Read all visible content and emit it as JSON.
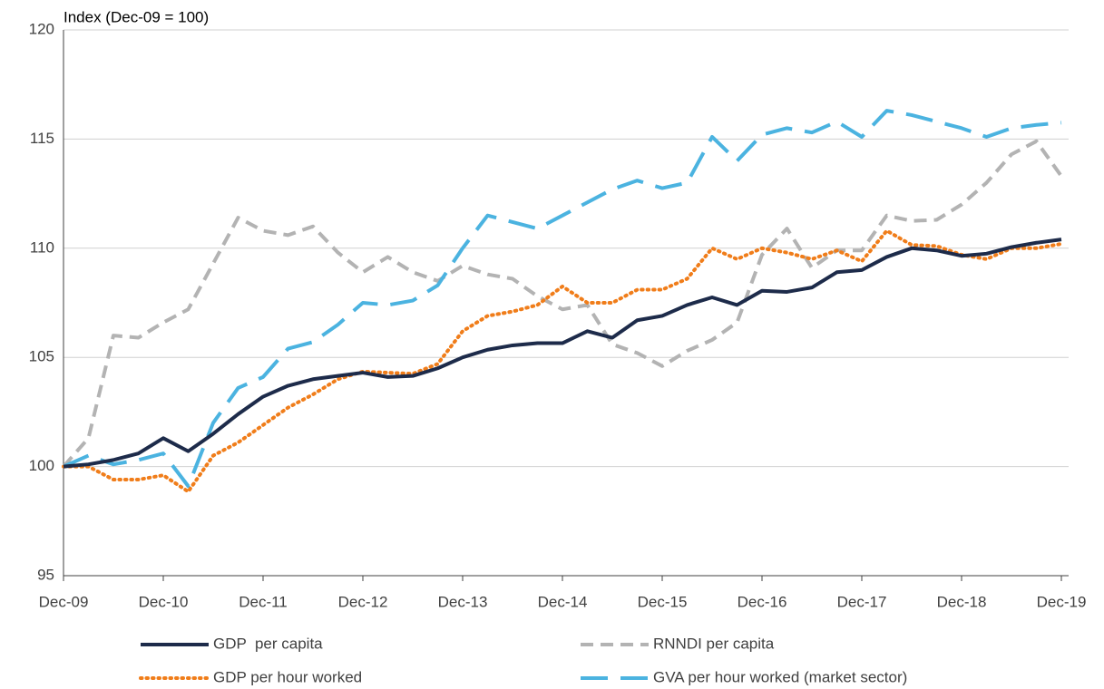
{
  "chart_data": {
    "type": "line",
    "y_axis_title": "Index (Dec-09 = 100)",
    "categories": [
      "Dec-09",
      null,
      null,
      null,
      "Dec-10",
      null,
      null,
      null,
      "Dec-11",
      null,
      null,
      null,
      "Dec-12",
      null,
      null,
      null,
      "Dec-13",
      null,
      null,
      null,
      "Dec-14",
      null,
      null,
      null,
      "Dec-15",
      null,
      null,
      null,
      "Dec-16",
      null,
      null,
      null,
      "Dec-17",
      null,
      null,
      null,
      "Dec-18",
      null,
      null,
      null,
      "Dec-19"
    ],
    "ylim": [
      95,
      120
    ],
    "yticks": [
      95,
      100,
      105,
      110,
      115,
      120
    ],
    "grid": true,
    "series": [
      {
        "name": "GDP  per capita",
        "color": "#1d2b4a",
        "style": "solid",
        "values": [
          100,
          100.1,
          100.3,
          100.6,
          101.3,
          100.7,
          101.5,
          102.4,
          103.2,
          103.7,
          104.0,
          104.15,
          104.3,
          104.1,
          104.15,
          104.5,
          105.0,
          105.35,
          105.55,
          105.65,
          105.65,
          106.2,
          105.9,
          106.7,
          106.9,
          107.4,
          107.75,
          107.4,
          108.05,
          108.0,
          108.2,
          108.9,
          109.0,
          109.6,
          110.0,
          109.9,
          109.65,
          109.75,
          110.05,
          110.25,
          110.4
        ]
      },
      {
        "name": "RNNDI per capita",
        "color": "#b3b3b3",
        "style": "dashed",
        "values": [
          100,
          101.3,
          106.0,
          105.9,
          106.6,
          107.2,
          109.3,
          111.4,
          110.8,
          110.6,
          111.0,
          109.8,
          108.9,
          109.6,
          108.9,
          108.5,
          109.2,
          108.8,
          108.6,
          107.8,
          107.2,
          107.4,
          105.6,
          105.2,
          104.6,
          105.3,
          105.8,
          106.6,
          109.7,
          110.9,
          109.1,
          109.9,
          109.9,
          111.5,
          111.25,
          111.3,
          112.0,
          113.0,
          114.3,
          114.9,
          113.3
        ]
      },
      {
        "name": "GDP per hour worked",
        "color": "#f07d1a",
        "style": "dotted",
        "values": [
          100,
          100.0,
          99.4,
          99.4,
          99.6,
          98.85,
          100.5,
          101.1,
          101.9,
          102.7,
          103.3,
          104.0,
          104.35,
          104.3,
          104.25,
          104.7,
          106.2,
          106.9,
          107.1,
          107.4,
          108.25,
          107.5,
          107.5,
          108.1,
          108.1,
          108.6,
          110.0,
          109.5,
          110.0,
          109.8,
          109.5,
          109.9,
          109.4,
          110.8,
          110.15,
          110.1,
          109.7,
          109.5,
          110.0,
          110.0,
          110.2
        ]
      },
      {
        "name": "GVA per hour worked (market sector)",
        "color": "#4bb3e0",
        "style": "longdash",
        "values": [
          100,
          100.5,
          100.1,
          100.3,
          100.6,
          99.1,
          102.0,
          103.6,
          104.1,
          105.4,
          105.7,
          106.5,
          107.5,
          107.4,
          107.6,
          108.3,
          110.0,
          111.5,
          111.2,
          110.9,
          111.5,
          112.1,
          112.7,
          113.1,
          112.75,
          113.0,
          115.1,
          114.0,
          115.2,
          115.5,
          115.3,
          115.8,
          115.1,
          116.3,
          116.1,
          115.8,
          115.5,
          115.1,
          115.5,
          115.65,
          115.75
        ]
      }
    ]
  }
}
